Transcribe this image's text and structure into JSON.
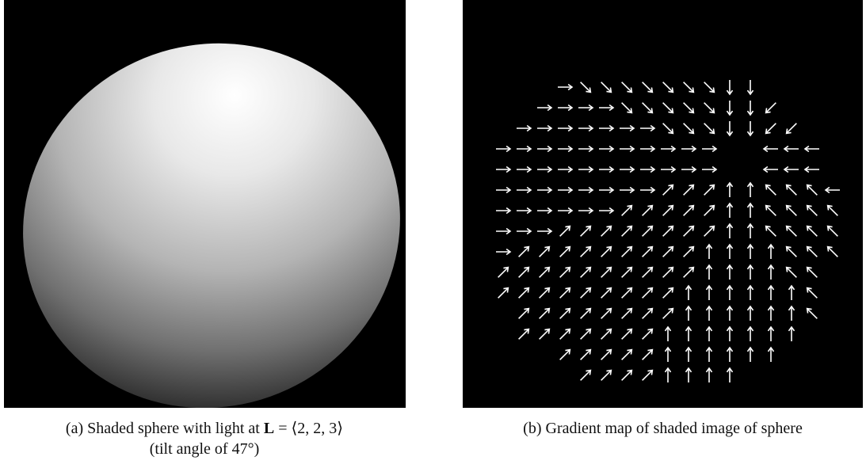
{
  "figures": [
    {
      "label": "(a)",
      "caption_before": "Shaded sphere with light at ",
      "caption_bold": "L",
      "caption_after": " = ⟨2, 2, 3⟩",
      "caption_line2": "(tilt angle of 47°)"
    },
    {
      "label": "(b)",
      "caption_before": "Gradient map of shaded image of sphere"
    }
  ]
}
